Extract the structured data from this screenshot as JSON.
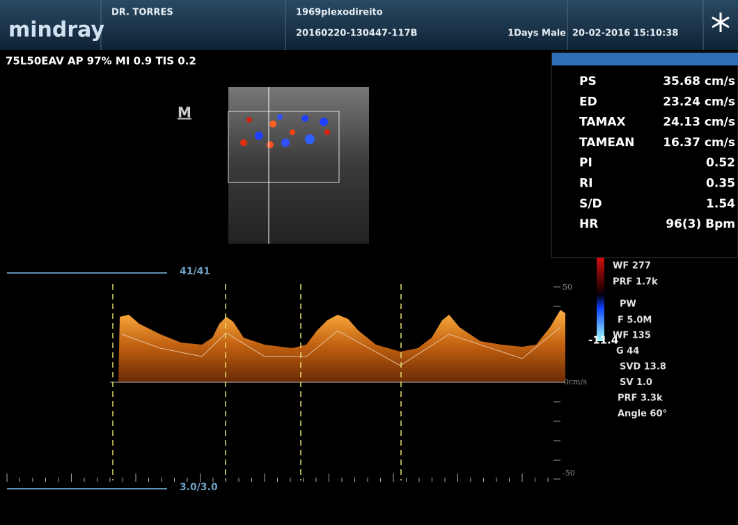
{
  "header": {
    "logo": "mindray",
    "doctor": "DR. TORRES",
    "patient_name": "1969plexodireito",
    "exam_id": "20160220-130447-117B",
    "patient_info": "1Days Male",
    "datetime": "20-02-2016 15:10:38"
  },
  "status_line": "75L50EAV AP 97% MI 0.9 TIS 0.2",
  "image_marker": "M",
  "measurements": {
    "rows": [
      {
        "label": "PS",
        "value": "35.68 cm/s"
      },
      {
        "label": "ED",
        "value": "23.24 cm/s"
      },
      {
        "label": "TAMAX",
        "value": "24.13 cm/s"
      },
      {
        "label": "TAMEAN",
        "value": "16.37 cm/s"
      },
      {
        "label": "PI",
        "value": "0.52"
      },
      {
        "label": "RI",
        "value": "0.35"
      },
      {
        "label": "S/D",
        "value": "1.54"
      },
      {
        "label": "HR",
        "value": "96(3) Bpm"
      }
    ]
  },
  "color_params": [
    "WF 277",
    "PRF 1.7k",
    "PW",
    "F 5.0M"
  ],
  "color_baseline": "-11.4",
  "doppler_params": [
    "WF 135",
    "G 44",
    "SVD 13.8",
    "SV 1.0",
    "PRF 3.3k",
    "Angle 60°"
  ],
  "frame_counter": "41/41",
  "time_counter": "3.0/3.0",
  "scale": {
    "top": "50",
    "zero": "0cm/s",
    "bottom": "-50"
  }
}
